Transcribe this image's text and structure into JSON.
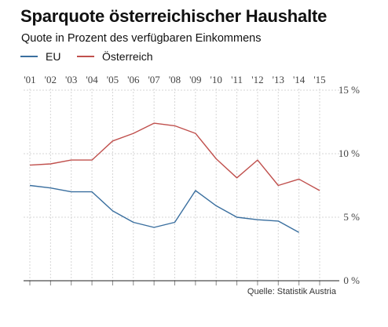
{
  "chart_data": {
    "type": "line",
    "title": "Sparquote österreichischer Haushalte",
    "subtitle": "Quote in Prozent des verfügbaren Einkommens",
    "categories": [
      "'01",
      "'02",
      "'03",
      "'04",
      "'05",
      "'06",
      "'07",
      "'08",
      "'09",
      "'10",
      "'11",
      "'12",
      "'13",
      "'14",
      "'15"
    ],
    "y_ticks": [
      {
        "value": 0,
        "label": "0 %"
      },
      {
        "value": 5,
        "label": "5 %"
      },
      {
        "value": 10,
        "label": "10 %"
      },
      {
        "value": 15,
        "label": "15 %"
      }
    ],
    "ylim": [
      0,
      15
    ],
    "grid": true,
    "legend_position": "top-left",
    "series": [
      {
        "name": "EU",
        "color": "#3a6f9f",
        "values": [
          7.5,
          7.3,
          7.0,
          7.0,
          5.5,
          4.6,
          4.2,
          4.6,
          7.1,
          5.9,
          5.0,
          4.8,
          4.7,
          3.8,
          null
        ]
      },
      {
        "name": "Österreich",
        "color": "#c0504d",
        "values": [
          9.1,
          9.2,
          9.5,
          9.5,
          11.0,
          11.6,
          12.4,
          12.2,
          11.6,
          9.6,
          8.1,
          9.5,
          7.5,
          8.0,
          7.1
        ]
      }
    ],
    "source": "Quelle: Statistik Austria"
  }
}
